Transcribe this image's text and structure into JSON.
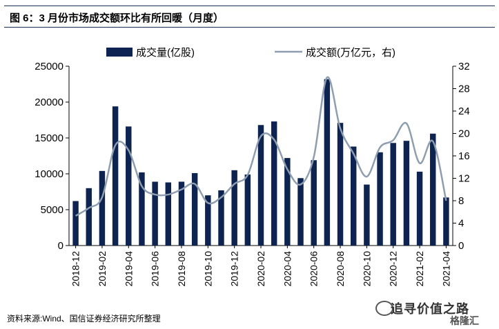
{
  "header": {
    "title": "图 6：3 月份市场成交额环比有所回暖（月度）"
  },
  "footer": {
    "source": "资料来源:Wind、国信证券经济研究所整理"
  },
  "watermark": {
    "text": "追寻价值之路",
    "sub": "格隆汇"
  },
  "colors": {
    "bar": "#0d2352",
    "line": "#8e9db0",
    "axis": "#000000"
  },
  "chart_data": {
    "type": "bar",
    "legend": [
      {
        "label": "成交量(亿股)",
        "kind": "bar"
      },
      {
        "label": "成交额(万亿元，右)",
        "kind": "line"
      }
    ],
    "legend_position": "top",
    "categories": [
      "2018-12",
      "2019-01",
      "2019-02",
      "2019-03",
      "2019-04",
      "2019-05",
      "2019-06",
      "2019-07",
      "2019-08",
      "2019-09",
      "2019-10",
      "2019-11",
      "2019-12",
      "2020-01",
      "2020-02",
      "2020-03",
      "2020-04",
      "2020-05",
      "2020-06",
      "2020-07",
      "2020-08",
      "2020-09",
      "2020-10",
      "2020-11",
      "2020-12",
      "2021-01",
      "2021-02",
      "2021-03",
      "2021-04"
    ],
    "x_tick_labels": [
      "2018-12",
      "2019-02",
      "2019-04",
      "2019-06",
      "2019-08",
      "2019-10",
      "2019-12",
      "2020-02",
      "2020-04",
      "2020-06",
      "2020-08",
      "2020-10",
      "2020-12",
      "2021-02",
      "2021-04"
    ],
    "series": [
      {
        "name": "成交量(亿股)",
        "type": "bar",
        "axis": "left",
        "values": [
          6200,
          8000,
          10400,
          19400,
          16600,
          10200,
          8900,
          8800,
          8900,
          10100,
          7000,
          7700,
          10500,
          9900,
          16800,
          17300,
          12200,
          9400,
          11900,
          23200,
          17100,
          13800,
          8500,
          13000,
          14300,
          14600,
          10300,
          15600,
          6700
        ]
      },
      {
        "name": "成交额(万亿元，右)",
        "type": "line",
        "axis": "right",
        "values": [
          5.3,
          6.7,
          8.6,
          17.9,
          17.0,
          10.6,
          9.1,
          9.1,
          10.0,
          11.0,
          7.6,
          8.6,
          11.0,
          12.6,
          19.5,
          18.9,
          13.6,
          10.9,
          15.8,
          30.0,
          20.9,
          16.4,
          12.3,
          17.5,
          18.8,
          21.8,
          14.7,
          18.6,
          8.0
        ]
      }
    ],
    "y_left": {
      "min": 0,
      "max": 25000,
      "ticks": [
        0,
        5000,
        10000,
        15000,
        20000,
        25000
      ]
    },
    "y_right": {
      "min": 0,
      "max": 32,
      "ticks": [
        0,
        4,
        8,
        12,
        16,
        20,
        24,
        28,
        32
      ]
    },
    "grid": false
  }
}
